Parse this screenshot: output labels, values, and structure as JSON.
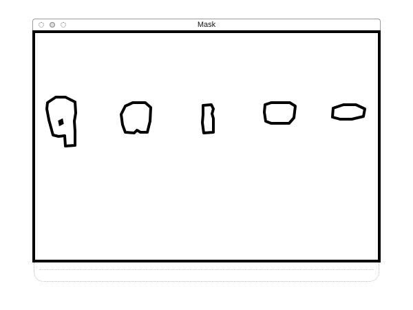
{
  "window": {
    "title": "Mask"
  },
  "titlebar_buttons": [
    "close-icon",
    "minimize-icon",
    "zoom-icon"
  ],
  "mask": {
    "background": "#ffffff",
    "contour_color": "#000000",
    "contour_count": 5
  }
}
